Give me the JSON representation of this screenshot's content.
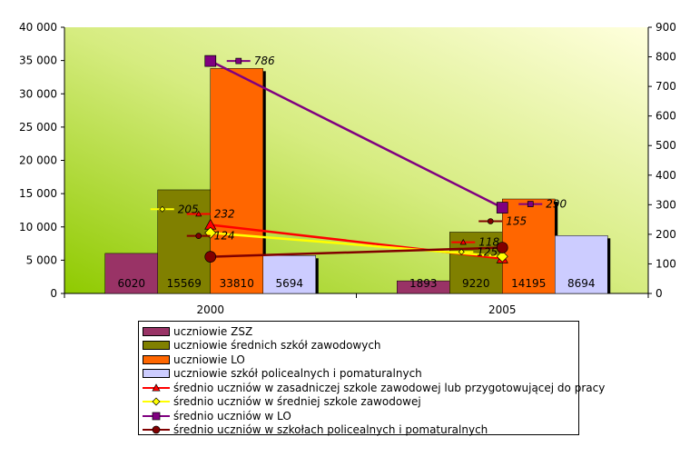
{
  "chart_data": {
    "type": "bar",
    "categories": [
      "2000",
      "2005"
    ],
    "y_left": {
      "range": [
        0,
        40000
      ],
      "ticks": [
        "0",
        "5 000",
        "10 000",
        "15 000",
        "20 000",
        "25 000",
        "30 000",
        "35 000",
        "40 000"
      ]
    },
    "y_right": {
      "range": [
        0,
        900
      ],
      "ticks": [
        "0",
        "100",
        "200",
        "300",
        "400",
        "500",
        "600",
        "700",
        "800",
        "900"
      ]
    },
    "bar_series": [
      {
        "name": "uczniowie ZSZ",
        "color": "#993366",
        "values": [
          6020,
          1893
        ],
        "labels": [
          "6020",
          "1893"
        ]
      },
      {
        "name": "uczniowie średnich szkół zawodowych",
        "color": "#808000",
        "values": [
          15569,
          9220
        ],
        "labels": [
          "15569",
          "9220"
        ]
      },
      {
        "name": "uczniowie LO",
        "color": "#FF6600",
        "values": [
          33810,
          14195
        ],
        "labels": [
          "33810",
          "14195"
        ]
      },
      {
        "name": "uczniowie szkół policealnych i pomaturalnych",
        "color": "#CCCCFF",
        "values": [
          5694,
          8694
        ],
        "labels": [
          "5694",
          "8694"
        ]
      }
    ],
    "line_series": [
      {
        "name": "średnio uczniów w zasadniczej szkole zawodowej lub przygotowującej do pracy",
        "color": "#FF0000",
        "marker": "triangle",
        "values": [
          232,
          118
        ],
        "labels": [
          "232",
          "118"
        ]
      },
      {
        "name": "średnio uczniów w średniej szkole zawodowej",
        "color": "#FFFF00",
        "marker": "diamond",
        "values": [
          205,
          125
        ],
        "labels": [
          "205",
          "125"
        ]
      },
      {
        "name": "średnio uczniów w LO",
        "color": "#800080",
        "marker": "square",
        "values": [
          786,
          290
        ],
        "labels": [
          "786",
          "290"
        ]
      },
      {
        "name": "średnio uczniów w szkołach policealnych i pomaturalnych",
        "color": "#800000",
        "marker": "circle",
        "values": [
          124,
          155
        ],
        "labels": [
          "124",
          "155"
        ]
      }
    ],
    "legend_position": "bottom",
    "background": "gradient green to light yellow"
  }
}
